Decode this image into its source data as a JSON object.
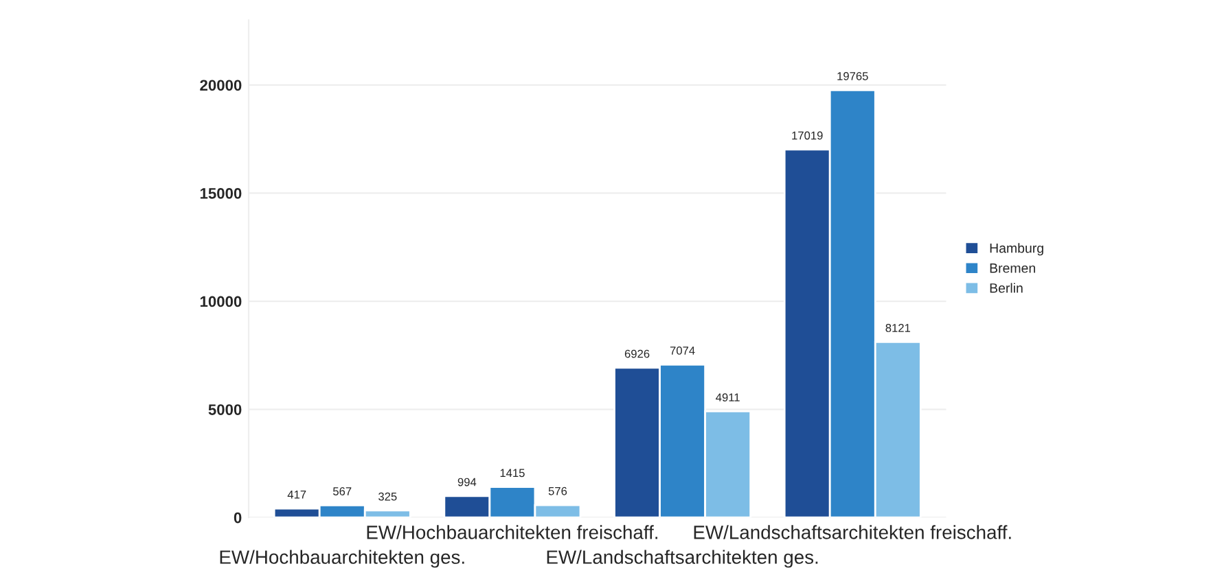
{
  "chart_data": {
    "type": "bar",
    "categories": [
      "EW/Hochbauarchitekten ges.",
      "EW/Hochbauarchitekten freischaff.",
      "EW/Landschaftsarchitekten ges.",
      "EW/Landschaftsarchitekten freischaff."
    ],
    "series": [
      {
        "name": "Hamburg",
        "color": "#1f4e96",
        "values": [
          417,
          994,
          6926,
          17019
        ]
      },
      {
        "name": "Bremen",
        "color": "#2e84c8",
        "values": [
          567,
          1415,
          7074,
          19765
        ]
      },
      {
        "name": "Berlin",
        "color": "#7dbde6",
        "values": [
          325,
          576,
          4911,
          8121
        ]
      }
    ],
    "ylim": [
      0,
      23000
    ],
    "yticks": [
      0,
      5000,
      10000,
      15000,
      20000
    ],
    "grid": "y",
    "legend": "right",
    "data_labels": true
  }
}
